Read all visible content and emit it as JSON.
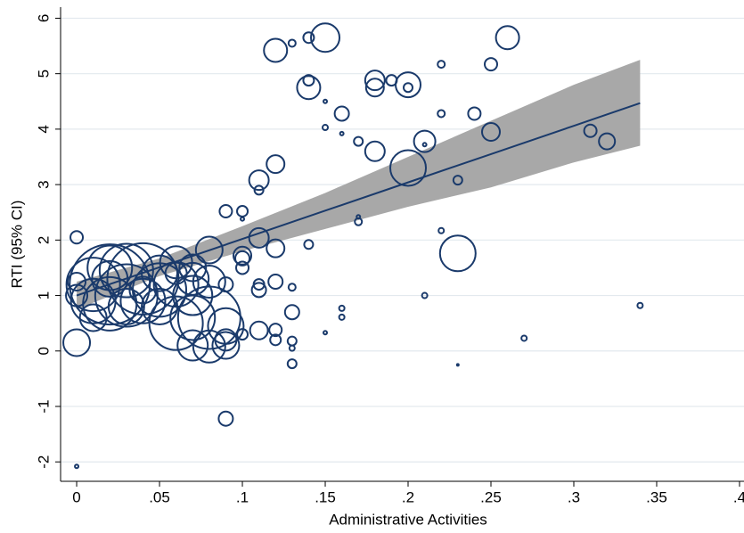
{
  "chart_data": {
    "type": "scatter",
    "xlabel": "Administrative Activities",
    "ylabel": "RTI (95% CI)",
    "color": "#1a3a6b",
    "band_color": "#a8a8a8",
    "grid": true,
    "xlim": [
      -0.0097,
      0.4027
    ],
    "ylim": [
      -2.35,
      6.2
    ],
    "xticks": [
      0,
      {
        "value": 0.05,
        "label": ".05"
      },
      {
        "value": 0.1,
        "label": ".1"
      },
      {
        "value": 0.15,
        "label": ".15"
      },
      {
        "value": 0.2,
        "label": ".2"
      },
      {
        "value": 0.25,
        "label": ".25"
      },
      {
        "value": 0.3,
        "label": ".3"
      },
      {
        "value": 0.35,
        "label": ".35"
      },
      {
        "value": 0.4,
        "label": ".4"
      }
    ],
    "yticks": [
      -2,
      -1,
      0,
      1,
      2,
      3,
      4,
      5,
      6
    ],
    "x": [
      0.13,
      0.12,
      0.14,
      0.15,
      0.26,
      0.14,
      0.14,
      0.15,
      0.18,
      0.18,
      0.19,
      0.2,
      0.2,
      0.22,
      0.25,
      0.22,
      0.24,
      0.16,
      0.15,
      0.16,
      0.17,
      0.18,
      0.21,
      0.21,
      0.2,
      0.25,
      0.31,
      0.32,
      0.23,
      0.11,
      0.11,
      0.12,
      0.09,
      0.1,
      0.1,
      0.17,
      0.17,
      0.22,
      0.11,
      0.12,
      0.14,
      0.23,
      0.08,
      0.1,
      0.1,
      0.1,
      0.09,
      0.11,
      0.11,
      0.12,
      0.13,
      0.13,
      0.16,
      0.16,
      0.21,
      0.34,
      0.11,
      0.12,
      0.12,
      0.13,
      0.13,
      0.13,
      0.15,
      0.27,
      0.23,
      0.09,
      0.0,
      0.0,
      0.0,
      0.1,
      0.09,
      0.09,
      0.08,
      0.07,
      0.0,
      0.01,
      0.02,
      0.01,
      0.02,
      0.03,
      0.04,
      0.03,
      0.02,
      0.05,
      0.04,
      0.06,
      0.06,
      0.05,
      0.07,
      0.07,
      0.06,
      0.08,
      0.08,
      0.09,
      0.07,
      0.01,
      0.03,
      0.05,
      0.0,
      0.02,
      0.04,
      0.06,
      0.07
    ],
    "values": [
      5.55,
      5.42,
      5.65,
      5.65,
      5.65,
      4.88,
      4.75,
      4.5,
      4.88,
      4.75,
      4.88,
      4.8,
      4.75,
      5.17,
      5.17,
      4.28,
      4.28,
      4.28,
      4.03,
      3.92,
      3.78,
      3.6,
      3.78,
      3.72,
      3.3,
      3.95,
      3.97,
      3.78,
      3.08,
      3.08,
      2.9,
      3.37,
      2.52,
      2.52,
      2.38,
      2.42,
      2.33,
      2.17,
      2.04,
      1.85,
      1.92,
      1.76,
      1.82,
      1.72,
      1.67,
      1.5,
      1.2,
      1.2,
      1.1,
      1.25,
      1.15,
      0.7,
      0.77,
      0.61,
      1.0,
      0.82,
      0.37,
      0.38,
      0.2,
      0.18,
      0.05,
      -0.23,
      0.33,
      0.23,
      -0.25,
      -1.22,
      -2.08,
      2.05,
      0.15,
      0.3,
      0.2,
      0.1,
      0.08,
      0.1,
      1.25,
      1.2,
      1.2,
      0.9,
      0.85,
      1.0,
      1.3,
      1.45,
      1.5,
      1.1,
      0.9,
      1.2,
      1.6,
      1.4,
      1.3,
      1.0,
      0.5,
      0.6,
      1.25,
      0.45,
      0.6,
      0.6,
      0.8,
      0.8,
      1.0,
      1.3,
      1.1,
      1.4,
      1.5
    ],
    "sizes": [
      16,
      169,
      36,
      256,
      169,
      36,
      169,
      4,
      121,
      100,
      36,
      196,
      25,
      16,
      49,
      16,
      49,
      64,
      9,
      4,
      25,
      121,
      144,
      4,
      400,
      100,
      49,
      81,
      25,
      121,
      25,
      100,
      49,
      36,
      4,
      4,
      16,
      9,
      121,
      100,
      25,
      400,
      225,
      100,
      64,
      49,
      64,
      36,
      64,
      64,
      16,
      64,
      9,
      9,
      9,
      9,
      100,
      49,
      36,
      25,
      9,
      25,
      4,
      9,
      1,
      64,
      4,
      49,
      225,
      36,
      144,
      225,
      324,
      289,
      100,
      900,
      2025,
      625,
      900,
      1225,
      1600,
      900,
      625,
      900,
      625,
      625,
      324,
      400,
      324,
      484,
      900,
      1225,
      324,
      400,
      625,
      225,
      400,
      400,
      144,
      400,
      225,
      144,
      225
    ],
    "fit": {
      "x": [
        0,
        0.05,
        0.1,
        0.15,
        0.2,
        0.25,
        0.3,
        0.34
      ],
      "values": [
        1.0,
        1.51,
        2.02,
        2.53,
        3.04,
        3.55,
        4.06,
        4.47
      ],
      "ci_lower": [
        0.75,
        1.35,
        1.8,
        2.2,
        2.6,
        2.95,
        3.4,
        3.7
      ],
      "ci_upper": [
        1.25,
        1.67,
        2.25,
        2.85,
        3.5,
        4.15,
        4.8,
        5.25
      ]
    }
  }
}
